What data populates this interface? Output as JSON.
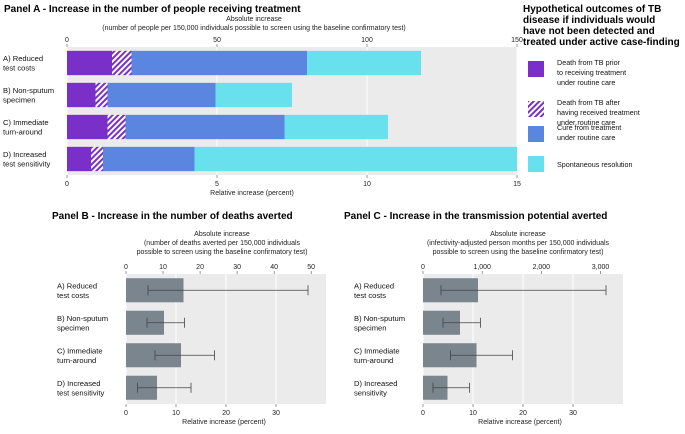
{
  "chart_data": [
    {
      "type": "bar",
      "stacked": true,
      "orientation": "horizontal",
      "title": "Panel A - Increase in the number of people receiving treatment",
      "top_axis_title": "Absolute increase",
      "top_axis_subtitle": "(number of people per 150,000 individuals possible to screen using the baseline confirmatory test)",
      "top_ticks": [
        0,
        50,
        100,
        150
      ],
      "top_lim": [
        0,
        150
      ],
      "xlabel": "Relative increase (percent)",
      "bottom_ticks": [
        0,
        5,
        10,
        15
      ],
      "xlim": [
        0,
        15
      ],
      "categories": [
        [
          "A) Reduced",
          "test costs"
        ],
        [
          "B) Non-sputum",
          "specimen"
        ],
        [
          "C) Immediate",
          "turn-around"
        ],
        [
          "D) Increased",
          "test sensitivity"
        ]
      ],
      "legend_title": [
        "Hypothetical outcomes of TB",
        "disease if individuals would",
        "have not been detected and",
        "treated under active case-finding"
      ],
      "series": [
        {
          "name": [
            "Death from TB prior",
            "to receiving treatment",
            "under routine care"
          ],
          "color": "#7b2fc9",
          "hatch": false,
          "values": [
            1.5,
            0.95,
            1.35,
            0.8
          ]
        },
        {
          "name": [
            "Death from TB after",
            "having received treatment",
            "under routine care"
          ],
          "color": "#7b2fc9",
          "hatch": true,
          "values": [
            0.65,
            0.4,
            0.6,
            0.4
          ]
        },
        {
          "name": [
            "Cure from treatment",
            "under routine care"
          ],
          "color": "#5b86e0",
          "hatch": false,
          "values": [
            5.85,
            3.6,
            5.3,
            3.05
          ]
        },
        {
          "name": [
            "Spontaneous resolution"
          ],
          "color": "#68e0ee",
          "hatch": false,
          "values": [
            3.8,
            2.55,
            3.45,
            10.75
          ]
        }
      ]
    },
    {
      "type": "bar",
      "orientation": "horizontal",
      "title": "Panel B - Increase in the number of deaths averted",
      "top_axis_title": "Absolute increase",
      "top_axis_subtitle": [
        "(number of deaths averted per 150,000 individuals",
        "possible to screen using the baseline confirmatory test)"
      ],
      "top_ticks": [
        0,
        10,
        20,
        30,
        40,
        50
      ],
      "top_lim": [
        0,
        54
      ],
      "xlabel": "Relative increase (percent)",
      "bottom_ticks": [
        0,
        10,
        20,
        30
      ],
      "xlim": [
        0,
        40
      ],
      "categories": [
        [
          "A) Reduced",
          "test costs"
        ],
        [
          "B) Non-sputum",
          "specimen"
        ],
        [
          "C) Immediate",
          "turn-around"
        ],
        [
          "D) Increased",
          "test sensitivity"
        ]
      ],
      "values": [
        11.5,
        7.6,
        11.0,
        6.2
      ],
      "error_low": [
        4.4,
        4.2,
        5.8,
        2.3
      ],
      "error_high": [
        36.4,
        11.7,
        17.7,
        13.0
      ],
      "color": "#7a858e"
    },
    {
      "type": "bar",
      "orientation": "horizontal",
      "title": "Panel C - Increase in the transmission potential averted",
      "top_axis_title": "Absolute increase",
      "top_axis_subtitle": [
        "(infectivity-adjusted person months per 150,000 individuals",
        "possible to screen using the baseline confirmatory test)"
      ],
      "top_ticks": [
        0,
        1000,
        2000,
        3000
      ],
      "top_tick_labels": [
        "0",
        "1,000",
        "2,000",
        "3,000"
      ],
      "top_lim": [
        0,
        3380
      ],
      "xlabel": "Relative increase (percent)",
      "bottom_ticks": [
        0,
        10,
        20,
        30
      ],
      "xlim": [
        0,
        40
      ],
      "categories": [
        [
          "A) Reduced",
          "test costs"
        ],
        [
          "B) Non-sputum",
          "specimen"
        ],
        [
          "C) Immediate",
          "turn-around"
        ],
        [
          "D) Increased",
          "sensitivity"
        ]
      ],
      "values": [
        11.0,
        7.4,
        10.7,
        4.9
      ],
      "error_low": [
        3.6,
        4.0,
        5.5,
        2.0
      ],
      "error_high": [
        36.6,
        11.5,
        17.9,
        9.3
      ],
      "color": "#7a858e"
    }
  ]
}
